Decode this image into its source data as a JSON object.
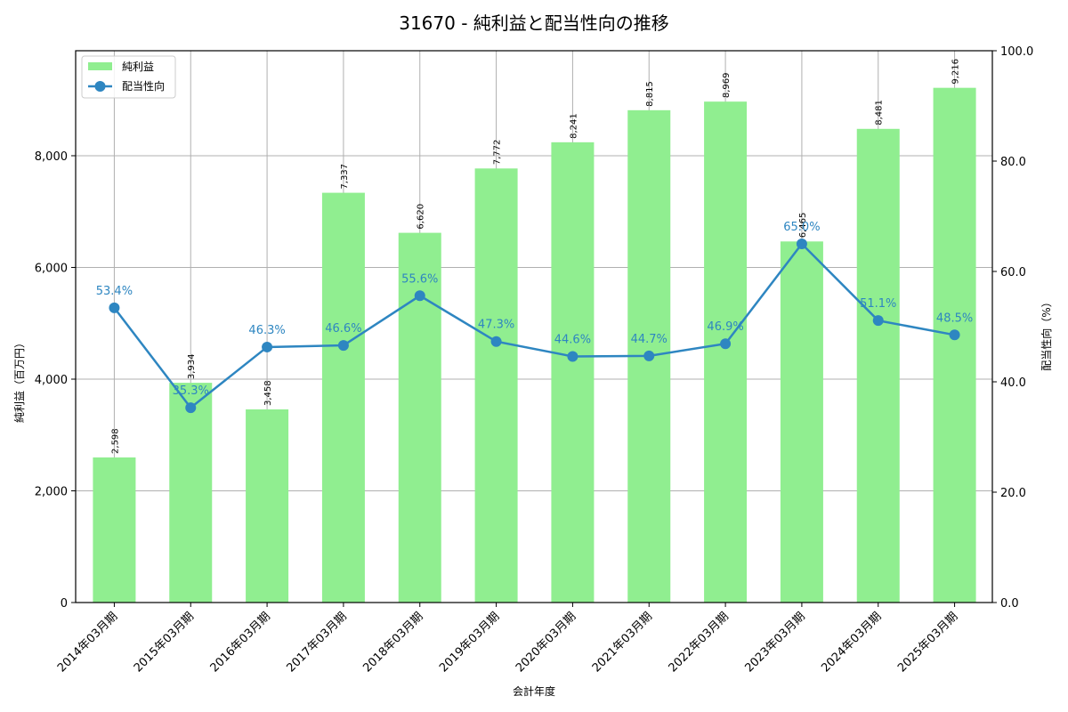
{
  "title": "31670 - 純利益と配当性向の推移",
  "chart_data": {
    "type": "bar+line",
    "title": "31670 - 純利益と配当性向の推移",
    "xlabel": "会計年度",
    "ylabel_left": "純利益（百万円）",
    "ylabel_right": "配当性向（%）",
    "categories": [
      "2014年03月期",
      "2015年03月期",
      "2016年03月期",
      "2017年03月期",
      "2018年03月期",
      "2019年03月期",
      "2020年03月期",
      "2021年03月期",
      "2022年03月期",
      "2023年03月期",
      "2024年03月期",
      "2025年03月期"
    ],
    "series": [
      {
        "name": "純利益",
        "type": "bar",
        "axis": "left",
        "color": "#90ee90",
        "values": [
          2598,
          3934,
          3458,
          7337,
          6620,
          7772,
          8241,
          8815,
          8969,
          6465,
          8481,
          9216
        ],
        "labels": [
          "2,598",
          "3,934",
          "3,458",
          "7,337",
          "6,620",
          "7,772",
          "8,241",
          "8,815",
          "8,969",
          "6,465",
          "8,481",
          "9,216"
        ]
      },
      {
        "name": "配当性向",
        "type": "line",
        "axis": "right",
        "color": "#2e86c1",
        "values": [
          53.4,
          35.3,
          46.3,
          46.6,
          55.6,
          47.3,
          44.6,
          44.7,
          46.9,
          65.0,
          51.1,
          48.5
        ],
        "labels": [
          "53.4%",
          "35.3%",
          "46.3%",
          "46.6%",
          "55.6%",
          "47.3%",
          "44.6%",
          "44.7%",
          "46.9%",
          "65.0%",
          "51.1%",
          "48.5%"
        ]
      }
    ],
    "ylim_left": [
      0,
      9880
    ],
    "ylim_right": [
      0,
      100
    ],
    "yticks_left": [
      "0",
      "2,000",
      "4,000",
      "6,000",
      "8,000"
    ],
    "yticks_right": [
      "0.0",
      "20.0",
      "40.0",
      "60.0",
      "80.0",
      "100.0"
    ],
    "grid": true,
    "legend_position": "upper left"
  },
  "legend": {
    "items": [
      {
        "label": "純利益"
      },
      {
        "label": "配当性向"
      }
    ]
  }
}
